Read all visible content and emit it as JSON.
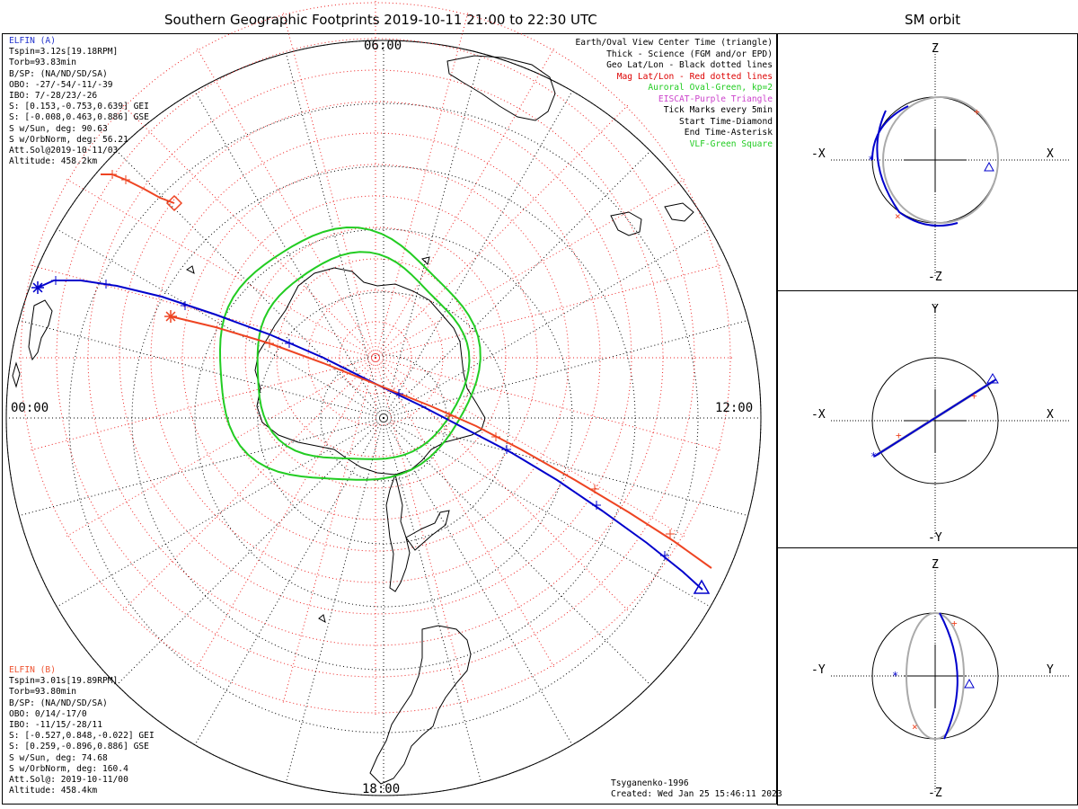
{
  "main_title": "Southern Geographic Footprints 2019-10-11 21:00 to 22:30 UTC",
  "side_title": "SM orbit",
  "colors": {
    "elfin_a": "#0000cc",
    "elfin_b": "#ee4422",
    "grid_geo": "#000000",
    "grid_mag": "#ee2222",
    "auroral_oval": "#22cc22",
    "eiscat": "#cc44cc",
    "orbit_gray": "#aaaaaa"
  },
  "elfin_a": {
    "header": "ELFIN (A)",
    "lines": [
      "Tspin=3.12s[19.18RPM]",
      "Torb=93.83min",
      "B/SP: (NA/ND/SD/SA)",
      "OBO: -27/-54/-11/-39",
      "IBO: 7/-28/23/-26",
      "S: [0.153,-0.753,0.639] GEI",
      "S: [-0.008,0.463,0.886] GSE",
      "S w/Sun, deg: 90.63",
      "S w/OrbNorm, deg: 56.21",
      "Att.Sol@2019-10-11/03",
      "Altitude: 458.2km"
    ]
  },
  "elfin_b": {
    "header": "ELFIN (B)",
    "lines": [
      "Tspin=3.01s[19.89RPM]",
      "Torb=93.80min",
      "B/SP: (NA/ND/SD/SA)",
      "OBO: 0/14/-17/0",
      "IBO: -11/15/-28/11",
      "S: [-0.527,0.848,-0.022] GEI",
      "S: [0.259,-0.896,0.886] GSE",
      "S w/Sun, deg: 74.68",
      "S w/OrbNorm, deg: 160.4",
      "Att.Sol@: 2019-10-11/00",
      "Altitude: 458.4km"
    ]
  },
  "legend": [
    {
      "text": "Earth/Oval View Center Time (triangle)",
      "color": "#000000"
    },
    {
      "text": "Thick - Science (FGM and/or EPD)",
      "color": "#000000"
    },
    {
      "text": "Geo Lat/Lon - Black dotted lines",
      "color": "#000000"
    },
    {
      "text": "Mag Lat/Lon - Red dotted lines",
      "color": "#dd0000"
    },
    {
      "text": "Auroral Oval-Green, kp=2",
      "color": "#22cc22"
    },
    {
      "text": "EISCAT-Purple Triangle",
      "color": "#cc44cc"
    },
    {
      "text": "Tick Marks every 5min",
      "color": "#000000"
    },
    {
      "text": "Start Time-Diamond",
      "color": "#000000"
    },
    {
      "text": "End Time-Asterisk",
      "color": "#000000"
    },
    {
      "text": "VLF-Green Square",
      "color": "#22cc22"
    }
  ],
  "dial_labels": {
    "top": "06:00",
    "left": "00:00",
    "right": "12:00",
    "bottom": "18:00"
  },
  "footer": {
    "model": "Tsyganenko-1996",
    "created": "Created: Wed Jan 25 15:46:11 2023"
  },
  "chart_data": [
    {
      "type": "map",
      "title": "Southern Geographic Footprints 2019-10-11 21:00 to 22:30 UTC",
      "projection": "south polar, local-time dial",
      "geo_lat_circles_deg": [
        -30,
        -40,
        -50,
        -60,
        -70,
        -80
      ],
      "local_time_labels": [
        "00:00",
        "06:00",
        "12:00",
        "18:00"
      ],
      "auroral_oval_kp": 2,
      "tracks": [
        {
          "name": "ELFIN (A)",
          "color": "#0000cc",
          "start": "diamond",
          "end": "asterisk"
        },
        {
          "name": "ELFIN (B)",
          "color": "#ee4422",
          "start": "diamond",
          "end": "asterisk"
        }
      ],
      "tick_interval": "5min"
    },
    {
      "type": "orbit",
      "title": "SM orbit",
      "panels": [
        {
          "h": "X",
          "v": "Z",
          "h_neg": "-X",
          "v_neg": "-Z"
        },
        {
          "h": "X",
          "v": "Y",
          "h_neg": "-X",
          "v_neg": "-Y"
        },
        {
          "h": "Y",
          "v": "Z",
          "h_neg": "-Y",
          "v_neg": "-Z"
        }
      ]
    }
  ]
}
